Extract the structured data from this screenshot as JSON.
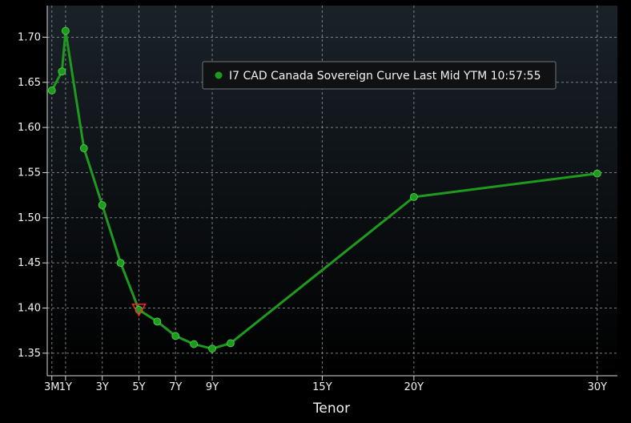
{
  "chart_data": {
    "type": "line",
    "xlabel": "Tenor",
    "ylabel": "",
    "ylim": [
      1.325,
      1.735
    ],
    "yticks": [
      1.35,
      1.4,
      1.45,
      1.5,
      1.55,
      1.6,
      1.65,
      1.7
    ],
    "ytick_labels": [
      "1.35",
      "1.40",
      "1.45",
      "1.50",
      "1.55",
      "1.60",
      "1.65",
      "1.70"
    ],
    "xlim": [
      0,
      31.1
    ],
    "xticks": [
      0.25,
      1,
      3,
      5,
      7,
      9,
      15,
      20,
      30
    ],
    "xtick_labels": [
      "3M",
      "1Y",
      "3Y",
      "5Y",
      "7Y",
      "9Y",
      "15Y",
      "20Y",
      "30Y"
    ],
    "grid": true,
    "legend": "top-center",
    "legend_text": "I7 CAD Canada Sovereign Curve Last Mid YTM 10:57:55",
    "colors": {
      "series": "#1e9b1e",
      "marker": "#1e9b1e",
      "highlight": "#ff2222",
      "grid": "#9aa3a8",
      "legend_bg": "#0f1113",
      "text": "#f2f2f2"
    },
    "series": [
      {
        "name": "I7 CAD Canada Sovereign Curve Last Mid YTM 10:57:55",
        "points": [
          [
            0.25,
            1.641
          ],
          [
            0.8,
            1.662
          ],
          [
            1,
            1.707
          ],
          [
            2,
            1.577
          ],
          [
            3,
            1.514
          ],
          [
            4,
            1.45
          ],
          [
            5,
            1.398
          ],
          [
            6,
            1.385
          ],
          [
            7,
            1.369
          ],
          [
            8,
            1.36
          ],
          [
            9,
            1.355
          ],
          [
            10,
            1.361
          ],
          [
            20,
            1.523
          ],
          [
            30,
            1.549
          ]
        ]
      }
    ],
    "highlight_marker": {
      "x": 5,
      "y": 1.398,
      "shape": "down-triangle"
    }
  }
}
